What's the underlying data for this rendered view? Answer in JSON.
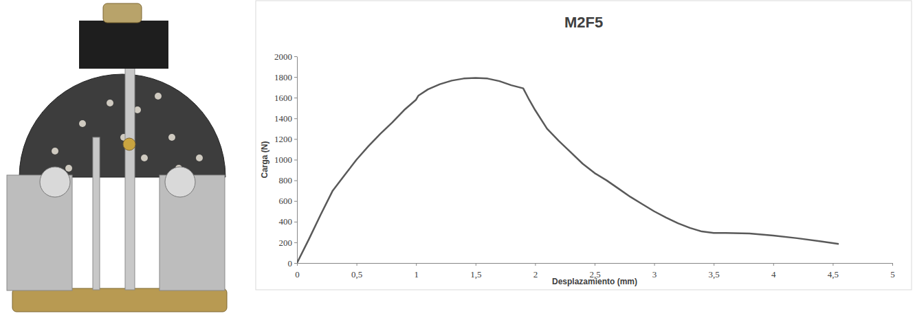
{
  "chart_data": {
    "type": "line",
    "title": "M2F5",
    "x_label": "Desplazamiento (mm)",
    "y_label": "Carga (N)",
    "x": [
      0,
      0.1,
      0.2,
      0.3,
      0.4,
      0.5,
      0.6,
      0.7,
      0.8,
      0.9,
      1.0,
      1.02,
      1.1,
      1.2,
      1.3,
      1.4,
      1.5,
      1.6,
      1.7,
      1.8,
      1.9,
      1.95,
      2.0,
      2.1,
      2.2,
      2.3,
      2.4,
      2.5,
      2.6,
      2.7,
      2.8,
      2.9,
      3.0,
      3.1,
      3.2,
      3.3,
      3.4,
      3.5,
      3.6,
      3.8,
      4.0,
      4.2,
      4.4,
      4.55
    ],
    "values": [
      0,
      230,
      470,
      700,
      850,
      1000,
      1130,
      1250,
      1360,
      1480,
      1580,
      1620,
      1680,
      1730,
      1765,
      1785,
      1790,
      1785,
      1760,
      1720,
      1690,
      1580,
      1480,
      1300,
      1180,
      1070,
      960,
      870,
      800,
      720,
      640,
      570,
      500,
      440,
      385,
      340,
      305,
      290,
      290,
      285,
      265,
      240,
      210,
      185
    ],
    "color": "#595959",
    "xlim": [
      0,
      5
    ],
    "xticks": [
      0,
      {
        "value": 0.5,
        "label": "0,5"
      },
      1,
      {
        "value": 1.5,
        "label": "1,5"
      },
      2,
      {
        "value": 2.5,
        "label": "2,5"
      },
      3,
      {
        "value": 3.5,
        "label": "3,5"
      },
      4,
      {
        "value": 4.5,
        "label": "4,5"
      },
      5
    ],
    "ylim": [
      0,
      2000
    ],
    "yticks": [
      0,
      200,
      400,
      600,
      800,
      1000,
      1200,
      1400,
      1600,
      1800,
      2000
    ],
    "grid": false
  }
}
